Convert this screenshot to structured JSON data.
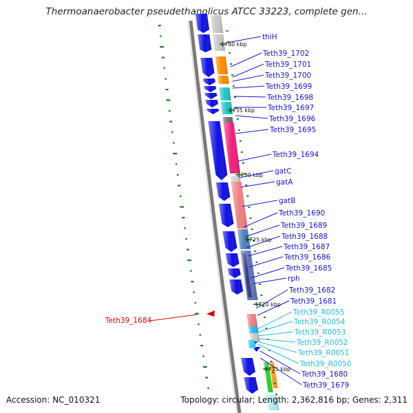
{
  "title": "Thermoanaerobacter pseudethanolicus ATCC 33223, complete gen...",
  "footer": {
    "accession": "Accession: NC_010321",
    "summary": "Topology: circular; Length: 2,362,816 bp; Genes: 2,311"
  },
  "colors": {
    "forward_gene": "#1010e0",
    "label_blue": "#1414c8",
    "label_rna": "#25b8e0",
    "label_highlight": "#d00000",
    "gc_tick": "#1f7a1f",
    "backbone": "#7a7a7a"
  },
  "scale_ticks": [
    "1740 kbp",
    "1735 kbp",
    "1730 kbp",
    "1725 kbp",
    "1720 kbp",
    "1715 kbp"
  ],
  "highlight_label": "Teth39_1684",
  "gene_labels": [
    {
      "text": "thiH",
      "kind": "cds"
    },
    {
      "text": "Teth39_1702",
      "kind": "cds"
    },
    {
      "text": "Teth39_1701",
      "kind": "cds"
    },
    {
      "text": "Teth39_1700",
      "kind": "cds"
    },
    {
      "text": "Teth39_1699",
      "kind": "cds"
    },
    {
      "text": "Teth39_1698",
      "kind": "cds"
    },
    {
      "text": "Teth39_1697",
      "kind": "cds"
    },
    {
      "text": "Teth39_1696",
      "kind": "cds"
    },
    {
      "text": "Teth39_1695",
      "kind": "cds"
    },
    {
      "text": "Teth39_1694",
      "kind": "cds"
    },
    {
      "text": "gatC",
      "kind": "cds"
    },
    {
      "text": "gatA",
      "kind": "cds"
    },
    {
      "text": "gatB",
      "kind": "cds"
    },
    {
      "text": "Teth39_1690",
      "kind": "cds"
    },
    {
      "text": "Teth39_1689",
      "kind": "cds"
    },
    {
      "text": "Teth39_1688",
      "kind": "cds"
    },
    {
      "text": "Teth39_1687",
      "kind": "cds"
    },
    {
      "text": "Teth39_1686",
      "kind": "cds"
    },
    {
      "text": "Teth39_1685",
      "kind": "cds"
    },
    {
      "text": "rph",
      "kind": "cds"
    },
    {
      "text": "Teth39_1682",
      "kind": "cds"
    },
    {
      "text": "Teth39_1681",
      "kind": "cds"
    },
    {
      "text": "Teth39_R0055",
      "kind": "rna"
    },
    {
      "text": "Teth39_R0054",
      "kind": "rna"
    },
    {
      "text": "Teth39_R0053",
      "kind": "rna"
    },
    {
      "text": "Teth39_R0052",
      "kind": "rna"
    },
    {
      "text": "Teth39_R0051",
      "kind": "rna"
    },
    {
      "text": "Teth39_R0050",
      "kind": "rna"
    },
    {
      "text": "Teth39_1680",
      "kind": "cds"
    },
    {
      "text": "Teth39_1679",
      "kind": "cds"
    }
  ]
}
